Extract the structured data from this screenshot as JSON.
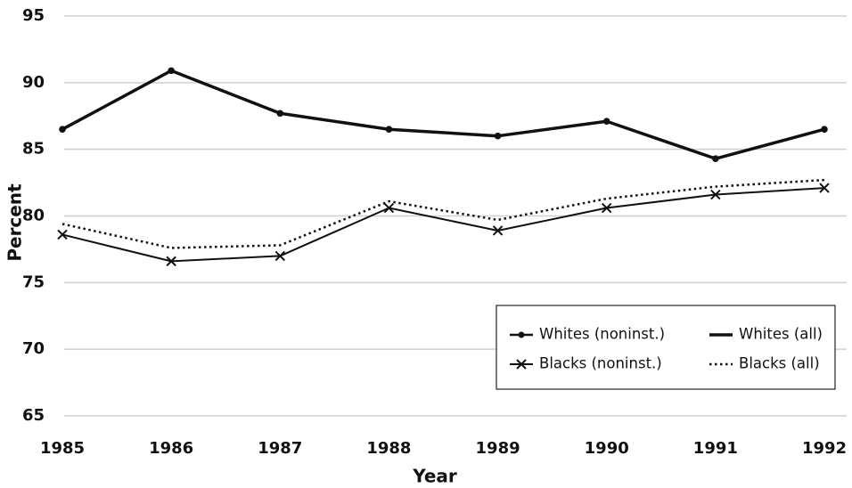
{
  "chart_data": {
    "type": "line",
    "xlabel": "Year",
    "ylabel": "Percent",
    "categories": [
      "1985",
      "1986",
      "1987",
      "1988",
      "1989",
      "1990",
      "1991",
      "1992"
    ],
    "series": [
      {
        "name": "Whites (noninst.)",
        "color": "#111111",
        "marker": "dot",
        "dash": "solid",
        "width": 2.5,
        "values": [
          86.5,
          90.9,
          87.7,
          86.5,
          86.0,
          87.1,
          84.3,
          86.5
        ]
      },
      {
        "name": "Whites (all)",
        "color": "#111111",
        "marker": "none",
        "dash": "solid",
        "width": 3.5,
        "values": [
          86.5,
          90.9,
          87.7,
          86.5,
          86.0,
          87.1,
          84.3,
          86.5
        ]
      },
      {
        "name": "Blacks (noninst.)",
        "color": "#111111",
        "marker": "x",
        "dash": "solid",
        "width": 2,
        "values": [
          78.6,
          76.6,
          77.0,
          80.6,
          78.9,
          80.6,
          81.6,
          82.1
        ]
      },
      {
        "name": "Blacks (all)",
        "color": "#111111",
        "marker": "none",
        "dash": "dotted",
        "width": 2.5,
        "values": [
          79.4,
          77.6,
          77.8,
          81.1,
          79.7,
          81.3,
          82.2,
          82.7
        ]
      }
    ],
    "ylim": [
      65,
      95
    ],
    "yticks": [
      65,
      70,
      75,
      80,
      85,
      90,
      95
    ],
    "grid": true,
    "legend": "lower right"
  }
}
